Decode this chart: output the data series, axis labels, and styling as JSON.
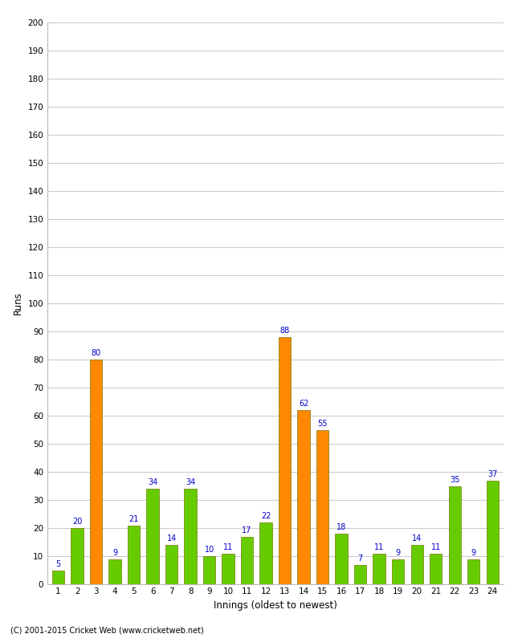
{
  "innings": [
    1,
    2,
    3,
    4,
    5,
    6,
    7,
    8,
    9,
    10,
    11,
    12,
    13,
    14,
    15,
    16,
    17,
    18,
    19,
    20,
    21,
    22,
    23,
    24
  ],
  "values": [
    5,
    20,
    80,
    9,
    21,
    34,
    14,
    34,
    10,
    11,
    17,
    22,
    88,
    62,
    55,
    18,
    7,
    11,
    9,
    14,
    11,
    35,
    9,
    37
  ],
  "colors": [
    "#66cc00",
    "#66cc00",
    "#ff8800",
    "#66cc00",
    "#66cc00",
    "#66cc00",
    "#66cc00",
    "#66cc00",
    "#66cc00",
    "#66cc00",
    "#66cc00",
    "#66cc00",
    "#ff8800",
    "#ff8800",
    "#ff8800",
    "#66cc00",
    "#66cc00",
    "#66cc00",
    "#66cc00",
    "#66cc00",
    "#66cc00",
    "#66cc00",
    "#66cc00",
    "#66cc00"
  ],
  "ylim": [
    0,
    200
  ],
  "yticks": [
    0,
    10,
    20,
    30,
    40,
    50,
    60,
    70,
    80,
    90,
    100,
    110,
    120,
    130,
    140,
    150,
    160,
    170,
    180,
    190,
    200
  ],
  "xlabel": "Innings (oldest to newest)",
  "ylabel": "Runs",
  "label_color": "#0000cc",
  "bar_edge_color": "#777700",
  "grid_color": "#cccccc",
  "bg_color": "#ffffff",
  "footer": "(C) 2001-2015 Cricket Web (www.cricketweb.net)"
}
